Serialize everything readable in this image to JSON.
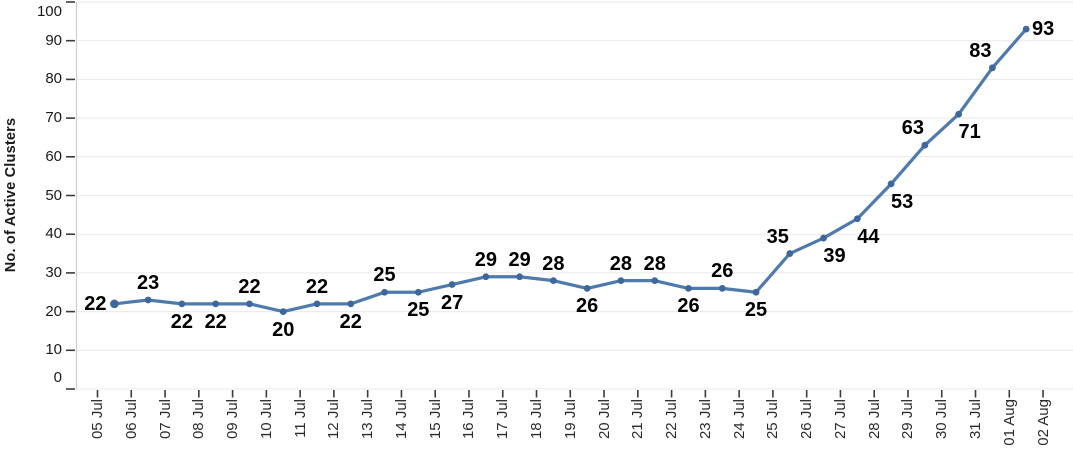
{
  "chart_data": {
    "type": "line",
    "title": "",
    "xlabel": "",
    "ylabel": "No. of Active Clusters",
    "ylim": [
      0,
      100
    ],
    "ytick_step": 10,
    "grid": true,
    "legend": "none",
    "y_tick_labels": [
      "0",
      "10",
      "20",
      "30",
      "40",
      "50",
      "60",
      "70",
      "80",
      "90",
      "100"
    ],
    "x_tick_labels": [
      "05 Jul",
      "06 Jul",
      "07 Jul",
      "08 Jul",
      "09 Jul",
      "10 Jul",
      "11 Jul",
      "12 Jul",
      "13 Jul",
      "14 Jul",
      "15 Jul",
      "16 Jul",
      "17 Jul",
      "18 Jul",
      "19 Jul",
      "20 Jul",
      "21 Jul",
      "22 Jul",
      "23 Jul",
      "24 Jul",
      "25 Jul",
      "26 Jul",
      "27 Jul",
      "28 Jul",
      "29 Jul",
      "30 Jul",
      "31 Jul",
      "01 Aug",
      "02 Aug"
    ],
    "series": [
      {
        "name": "No. of Active Clusters",
        "dates": [
          "05 Jul",
          "06 Jul",
          "07 Jul",
          "08 Jul",
          "09 Jul",
          "10 Jul",
          "11 Jul",
          "12 Jul",
          "13 Jul",
          "14 Jul",
          "15 Jul",
          "16 Jul",
          "17 Jul",
          "18 Jul",
          "19 Jul",
          "20 Jul",
          "21 Jul",
          "22 Jul",
          "23 Jul",
          "24 Jul",
          "25 Jul",
          "26 Jul",
          "27 Jul",
          "28 Jul",
          "29 Jul",
          "30 Jul",
          "31 Jul",
          "01 Aug"
        ],
        "values": [
          22,
          23,
          22,
          22,
          22,
          20,
          22,
          22,
          25,
          25,
          27,
          29,
          29,
          28,
          26,
          28,
          28,
          26,
          26,
          25,
          35,
          39,
          44,
          53,
          63,
          71,
          83,
          93
        ],
        "label_positions": [
          "left",
          "above",
          "below",
          "below",
          "above",
          "below",
          "above",
          "below",
          "above",
          "below",
          "below",
          "above",
          "above",
          "above",
          "below",
          "above",
          "above",
          "below",
          "above",
          "below",
          "above-left",
          "below-right",
          "below-right",
          "below-right",
          "above-left",
          "below-right",
          "above-left",
          "right"
        ]
      }
    ],
    "colors": {
      "line": "#4f7aae",
      "marker": "#3e689c",
      "grid": "#e9e9e9",
      "axis_line": "#c9c9c9",
      "tick": "#3c3c3c",
      "tick_label": "#1a1a1a",
      "data_label": "#000000"
    }
  }
}
